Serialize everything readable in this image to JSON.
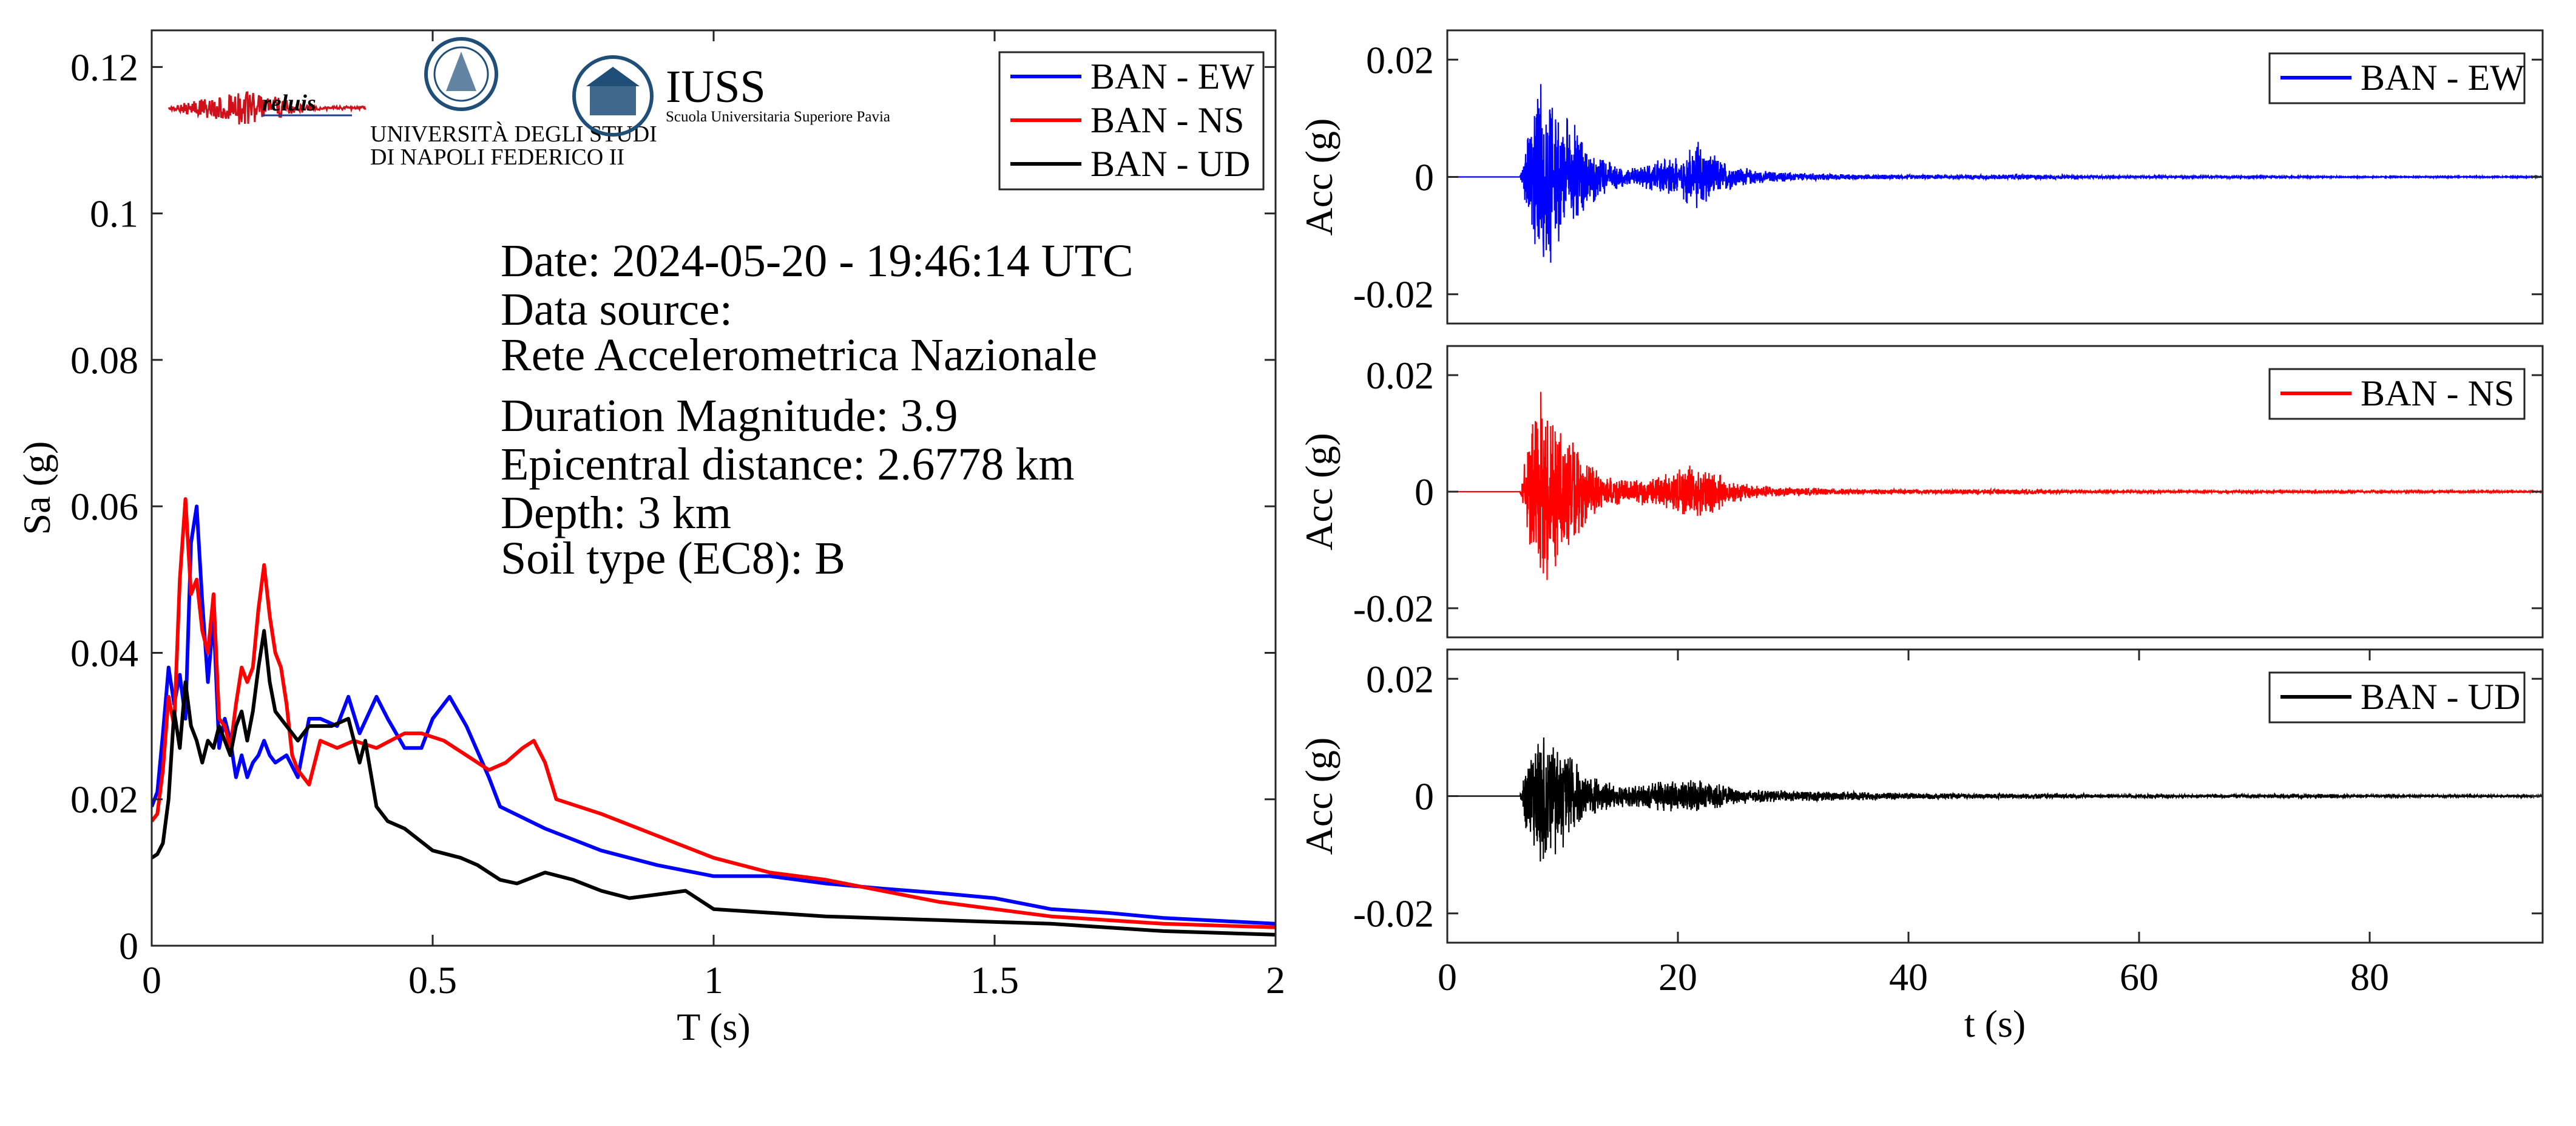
{
  "colors": {
    "ew": "#0000ff",
    "ns": "#ff0000",
    "ud": "#000000",
    "logo_blue": "#1f4e79",
    "logo_red": "#d0101a"
  },
  "logos": {
    "reluis": "reluis",
    "unina_line1": "UNIVERSITÀ DEGLI STUDI",
    "unina_line2": "DI NAPOLI FEDERICO II",
    "iuss": "IUSS",
    "iuss_sub": "Scuola Universitaria Superiore Pavia"
  },
  "info": {
    "date": "Date: 2024-05-20 - 19:46:14 UTC",
    "source_label": "Data source:",
    "source": "Rete Accelerometrica Nazionale",
    "magnitude": "Duration Magnitude: 3.9",
    "distance": "Epicentral distance: 2.6778 km",
    "depth": "Depth: 3 km",
    "soil": "Soil type (EC8): B"
  },
  "chart_data": [
    {
      "type": "line",
      "xlabel": "T (s)",
      "ylabel": "Sa (g)",
      "xlim": [
        0,
        2
      ],
      "ylim": [
        0,
        0.125
      ],
      "xticks": [
        0,
        0.5,
        1,
        1.5,
        2
      ],
      "xtick_labels": [
        "0",
        "0.5",
        "1",
        "1.5",
        "2"
      ],
      "yticks": [
        0,
        0.02,
        0.04,
        0.06,
        0.08,
        0.1,
        0.12
      ],
      "ytick_labels": [
        "0",
        "0.02",
        "0.04",
        "0.06",
        "0.08",
        "0.1",
        "0.12"
      ],
      "legend": "top-right",
      "grid": false,
      "series": [
        {
          "name": "BAN - EW",
          "color": "#0000ff",
          "x": [
            0,
            0.01,
            0.02,
            0.03,
            0.04,
            0.05,
            0.06,
            0.07,
            0.08,
            0.09,
            0.1,
            0.11,
            0.12,
            0.13,
            0.14,
            0.15,
            0.16,
            0.17,
            0.18,
            0.19,
            0.2,
            0.21,
            0.22,
            0.24,
            0.26,
            0.28,
            0.3,
            0.33,
            0.35,
            0.37,
            0.4,
            0.42,
            0.45,
            0.48,
            0.5,
            0.53,
            0.56,
            0.6,
            0.62,
            0.7,
            0.8,
            0.9,
            1.0,
            1.1,
            1.2,
            1.3,
            1.4,
            1.5,
            1.6,
            1.7,
            1.8,
            1.9,
            2.0
          ],
          "y": [
            0.019,
            0.021,
            0.029,
            0.038,
            0.033,
            0.037,
            0.031,
            0.055,
            0.06,
            0.047,
            0.036,
            0.045,
            0.027,
            0.031,
            0.028,
            0.023,
            0.026,
            0.023,
            0.025,
            0.026,
            0.028,
            0.026,
            0.025,
            0.026,
            0.023,
            0.031,
            0.031,
            0.03,
            0.034,
            0.029,
            0.034,
            0.031,
            0.027,
            0.027,
            0.031,
            0.034,
            0.03,
            0.023,
            0.019,
            0.016,
            0.013,
            0.011,
            0.0095,
            0.0095,
            0.0085,
            0.0078,
            0.0072,
            0.0065,
            0.005,
            0.0045,
            0.0038,
            0.0034,
            0.003
          ]
        },
        {
          "name": "BAN - NS",
          "color": "#ff0000",
          "x": [
            0,
            0.01,
            0.02,
            0.03,
            0.04,
            0.05,
            0.06,
            0.07,
            0.08,
            0.09,
            0.1,
            0.11,
            0.12,
            0.13,
            0.14,
            0.15,
            0.16,
            0.17,
            0.18,
            0.19,
            0.2,
            0.21,
            0.22,
            0.23,
            0.24,
            0.25,
            0.26,
            0.28,
            0.3,
            0.33,
            0.36,
            0.4,
            0.45,
            0.48,
            0.52,
            0.56,
            0.6,
            0.63,
            0.66,
            0.68,
            0.7,
            0.72,
            0.8,
            0.9,
            1.0,
            1.1,
            1.2,
            1.3,
            1.4,
            1.5,
            1.6,
            1.8,
            2.0
          ],
          "y": [
            0.017,
            0.018,
            0.024,
            0.034,
            0.03,
            0.05,
            0.061,
            0.048,
            0.05,
            0.043,
            0.04,
            0.048,
            0.031,
            0.03,
            0.027,
            0.033,
            0.038,
            0.036,
            0.038,
            0.046,
            0.052,
            0.045,
            0.04,
            0.038,
            0.033,
            0.026,
            0.024,
            0.022,
            0.028,
            0.027,
            0.028,
            0.027,
            0.029,
            0.029,
            0.028,
            0.026,
            0.024,
            0.025,
            0.027,
            0.028,
            0.025,
            0.02,
            0.018,
            0.015,
            0.012,
            0.01,
            0.009,
            0.0075,
            0.006,
            0.005,
            0.004,
            0.003,
            0.0025
          ]
        },
        {
          "name": "BAN - UD",
          "color": "#000000",
          "x": [
            0,
            0.01,
            0.02,
            0.03,
            0.04,
            0.05,
            0.06,
            0.07,
            0.08,
            0.09,
            0.1,
            0.11,
            0.12,
            0.13,
            0.14,
            0.15,
            0.16,
            0.17,
            0.18,
            0.19,
            0.2,
            0.21,
            0.22,
            0.24,
            0.26,
            0.28,
            0.3,
            0.32,
            0.35,
            0.37,
            0.38,
            0.4,
            0.42,
            0.45,
            0.5,
            0.55,
            0.58,
            0.62,
            0.65,
            0.7,
            0.75,
            0.8,
            0.85,
            0.9,
            0.95,
            1.0,
            1.1,
            1.2,
            1.4,
            1.6,
            1.8,
            2.0
          ],
          "y": [
            0.012,
            0.0125,
            0.014,
            0.02,
            0.032,
            0.027,
            0.036,
            0.03,
            0.028,
            0.025,
            0.028,
            0.027,
            0.03,
            0.028,
            0.026,
            0.03,
            0.032,
            0.028,
            0.032,
            0.038,
            0.043,
            0.036,
            0.032,
            0.03,
            0.028,
            0.03,
            0.03,
            0.03,
            0.031,
            0.025,
            0.028,
            0.019,
            0.017,
            0.016,
            0.013,
            0.012,
            0.011,
            0.009,
            0.0085,
            0.01,
            0.009,
            0.0075,
            0.0065,
            0.007,
            0.0075,
            0.005,
            0.0045,
            0.004,
            0.0035,
            0.003,
            0.002,
            0.0015
          ]
        }
      ]
    },
    {
      "type": "line",
      "xlabel": "",
      "ylabel": "Acc (g)",
      "xlim": [
        0,
        95
      ],
      "ylim": [
        -0.025,
        0.025
      ],
      "yticks": [
        -0.02,
        0,
        0.02
      ],
      "ytick_labels": [
        "-0.02",
        "0",
        "0.02"
      ],
      "legend": "top-right",
      "series": [
        {
          "name": "BAN - EW",
          "color": "#0000ff",
          "envelope_t": [
            0,
            6.3,
            7,
            8,
            9,
            10,
            11,
            12,
            13,
            14,
            15,
            16,
            18,
            20,
            21,
            22,
            23,
            24,
            25,
            27,
            30,
            35,
            40,
            45,
            50,
            55,
            60,
            70,
            80,
            95
          ],
          "envelope_amp": [
            0,
            0,
            0.008,
            0.018,
            0.015,
            0.012,
            0.01,
            0.006,
            0.004,
            0.003,
            0.002,
            0.0015,
            0.003,
            0.004,
            0.005,
            0.007,
            0.004,
            0.003,
            0.002,
            0.0012,
            0.0008,
            0.0005,
            0.0004,
            0.0004,
            0.0005,
            0.0003,
            0.0002,
            0.0002,
            0.0001,
            0.0001
          ]
        }
      ]
    },
    {
      "type": "line",
      "xlabel": "",
      "ylabel": "Acc (g)",
      "xlim": [
        0,
        95
      ],
      "ylim": [
        -0.025,
        0.025
      ],
      "yticks": [
        -0.02,
        0,
        0.02
      ],
      "ytick_labels": [
        "-0.02",
        "0",
        "0.02"
      ],
      "legend": "top-right",
      "series": [
        {
          "name": "BAN - NS",
          "color": "#ff0000",
          "envelope_t": [
            0,
            6.3,
            7,
            8,
            9,
            10,
            11,
            12,
            13,
            14,
            15,
            16,
            18,
            20,
            21,
            22,
            23,
            24,
            25,
            27,
            30,
            35,
            40,
            45,
            50,
            55,
            60,
            70,
            80,
            95
          ],
          "envelope_amp": [
            0,
            0,
            0.009,
            0.018,
            0.016,
            0.013,
            0.01,
            0.006,
            0.004,
            0.003,
            0.0025,
            0.002,
            0.003,
            0.004,
            0.005,
            0.005,
            0.004,
            0.003,
            0.002,
            0.0012,
            0.0008,
            0.0005,
            0.0004,
            0.0004,
            0.0005,
            0.0003,
            0.0002,
            0.0002,
            0.0002,
            0.0001
          ]
        }
      ]
    },
    {
      "type": "line",
      "xlabel": "t (s)",
      "ylabel": "Acc (g)",
      "xlim": [
        0,
        95
      ],
      "ylim": [
        -0.025,
        0.025
      ],
      "xticks": [
        0,
        20,
        40,
        60,
        80
      ],
      "xtick_labels": [
        "0",
        "20",
        "40",
        "60",
        "80"
      ],
      "yticks": [
        -0.02,
        0,
        0.02
      ],
      "ytick_labels": [
        "-0.02",
        "0",
        "0.02"
      ],
      "legend": "top-right",
      "series": [
        {
          "name": "BAN - UD",
          "color": "#000000",
          "envelope_t": [
            0,
            6.3,
            7,
            8,
            9,
            10,
            11,
            12,
            13,
            14,
            15,
            16,
            18,
            20,
            21,
            22,
            23,
            24,
            25,
            27,
            30,
            35,
            40,
            45,
            50,
            55,
            60,
            70,
            76,
            80,
            95
          ],
          "envelope_amp": [
            0,
            0,
            0.008,
            0.012,
            0.012,
            0.01,
            0.007,
            0.004,
            0.003,
            0.0025,
            0.002,
            0.002,
            0.0025,
            0.003,
            0.003,
            0.003,
            0.0025,
            0.002,
            0.0015,
            0.0012,
            0.001,
            0.0008,
            0.0006,
            0.0005,
            0.0005,
            0.0004,
            0.0003,
            0.0003,
            0.0004,
            0.0002,
            0.0002
          ]
        }
      ]
    }
  ]
}
